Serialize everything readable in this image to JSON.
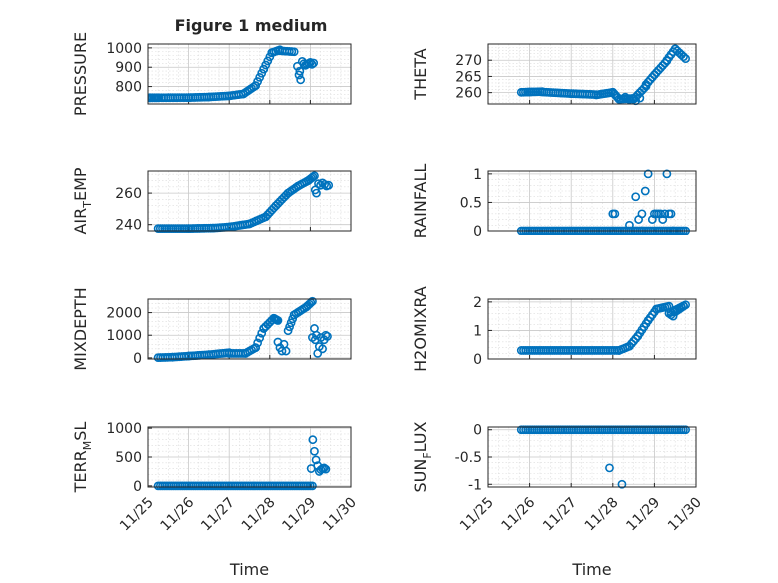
{
  "figure": {
    "title": "Figure 1 medium"
  },
  "chart_data": [
    {
      "type": "scatter",
      "title": "Figure 1 medium",
      "ylabel": "PRESSURE",
      "ylabel_parts": [
        "PRESSURE"
      ],
      "xlabel": "",
      "xlim": [
        0,
        5
      ],
      "ylim": [
        710,
        1020
      ],
      "yticks": [
        800,
        900,
        1000
      ],
      "xticks": [],
      "grid": true,
      "color": "#0072BD",
      "series": [
        {
          "segments": [
            [
              0.25,
              0.0,
              742,
              742
            ],
            [
              0.0,
              1.0,
              742,
              743
            ],
            [
              1.0,
              1.5,
              743,
              746
            ],
            [
              1.5,
              2.0,
              746,
              752
            ],
            [
              2.0,
              2.35,
              752,
              762
            ],
            [
              2.35,
              2.65,
              762,
              805
            ],
            [
              2.65,
              2.85,
              805,
              890
            ],
            [
              2.85,
              3.05,
              890,
              975
            ],
            [
              3.05,
              3.25,
              975,
              990
            ],
            [
              3.25,
              3.6,
              985,
              980
            ]
          ],
          "points": [
            [
              3.68,
              905
            ],
            [
              3.72,
              860
            ],
            [
              3.76,
              835
            ],
            [
              3.8,
              930
            ],
            [
              3.84,
              918
            ],
            [
              3.88,
              910
            ],
            [
              3.92,
              915
            ],
            [
              3.96,
              920
            ],
            [
              4.0,
              925
            ],
            [
              4.04,
              915
            ],
            [
              4.08,
              922
            ],
            [
              3.74,
              880
            ]
          ]
        }
      ]
    },
    {
      "type": "scatter",
      "ylabel": "THETA",
      "ylabel_parts": [
        "THETA"
      ],
      "xlabel": "",
      "xlim": [
        0,
        5
      ],
      "ylim": [
        256.5,
        275
      ],
      "yticks": [
        260,
        265,
        270
      ],
      "xticks": [],
      "grid": true,
      "color": "#0072BD",
      "series": [
        {
          "segments": [
            [
              0.8,
              1.0,
              260.1,
              260.2
            ],
            [
              1.0,
              1.3,
              260.2,
              260.3
            ],
            [
              1.3,
              2.0,
              260.2,
              259.7
            ],
            [
              2.0,
              2.6,
              259.7,
              259.4
            ],
            [
              2.6,
              3.0,
              259.3,
              260.1
            ],
            [
              3.0,
              3.15,
              260.1,
              258.0
            ],
            [
              3.15,
              3.5,
              258.0,
              258.2
            ],
            [
              3.5,
              3.8,
              258.0,
              262.0
            ],
            [
              3.8,
              4.0,
              262.5,
              265.5
            ],
            [
              4.0,
              4.3,
              265.5,
              269.8
            ],
            [
              4.3,
              4.5,
              270.0,
              273.5
            ],
            [
              4.5,
              4.75,
              273.5,
              270.5
            ]
          ],
          "points": [
            [
              3.3,
              258.6
            ],
            [
              3.4,
              257.9
            ],
            [
              3.55,
              257.5
            ],
            [
              3.65,
              258.3
            ]
          ]
        }
      ]
    },
    {
      "type": "scatter",
      "ylabel": "AIR_TEMP",
      "ylabel_parts": [
        "AIR",
        "T",
        "EMP"
      ],
      "xlabel": "",
      "xlim": [
        0,
        5
      ],
      "ylim": [
        236,
        274
      ],
      "yticks": [
        240,
        260
      ],
      "xticks": [],
      "grid": true,
      "color": "#0072BD",
      "series": [
        {
          "segments": [
            [
              0.25,
              1.0,
              237.5,
              237.5
            ],
            [
              1.0,
              1.6,
              237.5,
              237.8
            ],
            [
              1.6,
              2.0,
              237.8,
              238.5
            ],
            [
              2.0,
              2.5,
              238.5,
              240.5
            ],
            [
              2.5,
              2.9,
              240.5,
              245.0
            ],
            [
              2.9,
              3.15,
              245.0,
              252.0
            ],
            [
              3.15,
              3.45,
              252.0,
              260.0
            ],
            [
              3.45,
              3.7,
              260.0,
              264.5
            ],
            [
              3.7,
              3.95,
              264.5,
              268.0
            ],
            [
              3.95,
              4.1,
              268.0,
              271.0
            ]
          ],
          "points": [
            [
              4.12,
              262.0
            ],
            [
              4.15,
              260.0
            ],
            [
              4.2,
              266.0
            ],
            [
              4.25,
              265.0
            ],
            [
              4.3,
              266.5
            ],
            [
              4.35,
              265.5
            ],
            [
              4.4,
              264.5
            ],
            [
              4.45,
              265.0
            ]
          ]
        }
      ]
    },
    {
      "type": "scatter",
      "ylabel": "RAINFALL",
      "ylabel_parts": [
        "RAINFALL"
      ],
      "xlabel": "",
      "xlim": [
        0,
        5
      ],
      "ylim": [
        0,
        1.05
      ],
      "yticks": [
        0,
        0.5,
        1
      ],
      "xticks": [],
      "grid": true,
      "color": "#0072BD",
      "series": [
        {
          "segments": [
            [
              0.8,
              4.75,
              0,
              0
            ]
          ],
          "points": [
            [
              3.0,
              0.3
            ],
            [
              3.05,
              0.3
            ],
            [
              3.4,
              0.1
            ],
            [
              3.55,
              0.6
            ],
            [
              3.62,
              0.2
            ],
            [
              3.7,
              0.3
            ],
            [
              3.78,
              0.7
            ],
            [
              3.85,
              1.0
            ],
            [
              3.95,
              0.2
            ],
            [
              4.0,
              0.3
            ],
            [
              4.05,
              0.3
            ],
            [
              4.1,
              0.3
            ],
            [
              4.15,
              0.3
            ],
            [
              4.2,
              0.2
            ],
            [
              4.25,
              0.3
            ],
            [
              4.3,
              1.0
            ],
            [
              4.35,
              0.3
            ],
            [
              4.4,
              0.3
            ],
            [
              3.7,
              0.0
            ],
            [
              4.45,
              0.0
            ]
          ]
        }
      ]
    },
    {
      "type": "scatter",
      "ylabel": "MIXDEPTH",
      "ylabel_parts": [
        "MIXDEPTH"
      ],
      "xlabel": "",
      "xlim": [
        0,
        5
      ],
      "ylim": [
        -50,
        2600
      ],
      "yticks": [
        0,
        1000,
        2000
      ],
      "xticks": [],
      "grid": true,
      "color": "#0072BD",
      "series": [
        {
          "segments": [
            [
              0.25,
              0.6,
              10,
              30
            ],
            [
              0.6,
              1.0,
              30,
              80
            ],
            [
              1.0,
              1.5,
              80,
              140
            ],
            [
              1.5,
              2.0,
              140,
              230
            ],
            [
              2.0,
              2.4,
              200,
              200
            ],
            [
              2.4,
              2.65,
              200,
              450
            ],
            [
              2.65,
              2.85,
              450,
              1300
            ],
            [
              2.85,
              3.1,
              1300,
              1750
            ],
            [
              3.1,
              3.2,
              1750,
              1650
            ],
            [
              3.45,
              3.6,
              1200,
              1900
            ],
            [
              3.6,
              3.9,
              1900,
              2250
            ],
            [
              3.9,
              4.05,
              2250,
              2500
            ]
          ],
          "points": [
            [
              3.2,
              700
            ],
            [
              3.25,
              450
            ],
            [
              3.3,
              300
            ],
            [
              3.35,
              600
            ],
            [
              3.4,
              300
            ],
            [
              4.05,
              900
            ],
            [
              4.1,
              1300
            ],
            [
              4.12,
              800
            ],
            [
              4.15,
              1000
            ],
            [
              4.18,
              200
            ],
            [
              4.22,
              500
            ],
            [
              4.26,
              900
            ],
            [
              4.3,
              400
            ],
            [
              4.34,
              800
            ],
            [
              4.38,
              1000
            ],
            [
              4.42,
              950
            ]
          ]
        }
      ]
    },
    {
      "type": "scatter",
      "ylabel": "H2OMIXRA",
      "ylabel_parts": [
        "H2OMIXRA"
      ],
      "xlabel": "",
      "xlim": [
        0,
        5
      ],
      "ylim": [
        0,
        2.1
      ],
      "yticks": [
        0,
        1,
        2
      ],
      "xticks": [],
      "grid": true,
      "color": "#0072BD",
      "series": [
        {
          "segments": [
            [
              0.8,
              3.15,
              0.3,
              0.3
            ],
            [
              3.15,
              3.4,
              0.3,
              0.45
            ],
            [
              3.4,
              3.6,
              0.45,
              0.8
            ],
            [
              3.6,
              3.85,
              0.8,
              1.35
            ],
            [
              3.85,
              4.05,
              1.35,
              1.75
            ],
            [
              4.05,
              4.35,
              1.75,
              1.85
            ],
            [
              4.35,
              4.75,
              1.6,
              1.9
            ]
          ],
          "points": [
            [
              4.4,
              1.55
            ],
            [
              4.45,
              1.5
            ],
            [
              4.5,
              1.65
            ],
            [
              4.55,
              1.7
            ],
            [
              4.6,
              1.75
            ],
            [
              4.65,
              1.8
            ],
            [
              4.7,
              1.85
            ]
          ]
        }
      ]
    },
    {
      "type": "scatter",
      "ylabel": "TERR_MSL",
      "ylabel_parts": [
        "TERR",
        "M",
        "SL"
      ],
      "xlabel": "Time",
      "xlim": [
        0,
        5
      ],
      "ylim": [
        -20,
        1020
      ],
      "yticks": [
        0,
        500,
        1000
      ],
      "xticks": [
        "11/25",
        "11/26",
        "11/27",
        "11/28",
        "11/29",
        "11/30"
      ],
      "grid": true,
      "color": "#0072BD",
      "series": [
        {
          "segments": [
            [
              0.25,
              4.05,
              0,
              0
            ]
          ],
          "points": [
            [
              4.02,
              300
            ],
            [
              4.06,
              800
            ],
            [
              4.1,
              600
            ],
            [
              4.14,
              450
            ],
            [
              4.18,
              350
            ],
            [
              4.22,
              250
            ],
            [
              4.26,
              280
            ],
            [
              4.3,
              300
            ],
            [
              4.34,
              310
            ],
            [
              4.38,
              290
            ]
          ]
        }
      ]
    },
    {
      "type": "scatter",
      "ylabel": "SUN_FLUX",
      "ylabel_parts": [
        "SUN",
        "F",
        "LUX"
      ],
      "xlabel": "Time",
      "xlim": [
        0,
        5
      ],
      "ylim": [
        -1.05,
        0.05
      ],
      "yticks": [
        -1,
        -0.5,
        0
      ],
      "xticks": [
        "11/25",
        "11/26",
        "11/27",
        "11/28",
        "11/29",
        "11/30"
      ],
      "grid": true,
      "color": "#0072BD",
      "series": [
        {
          "segments": [
            [
              0.8,
              4.75,
              0,
              0
            ]
          ],
          "points": [
            [
              2.92,
              -0.7
            ],
            [
              3.22,
              -1.0
            ]
          ]
        }
      ]
    }
  ]
}
